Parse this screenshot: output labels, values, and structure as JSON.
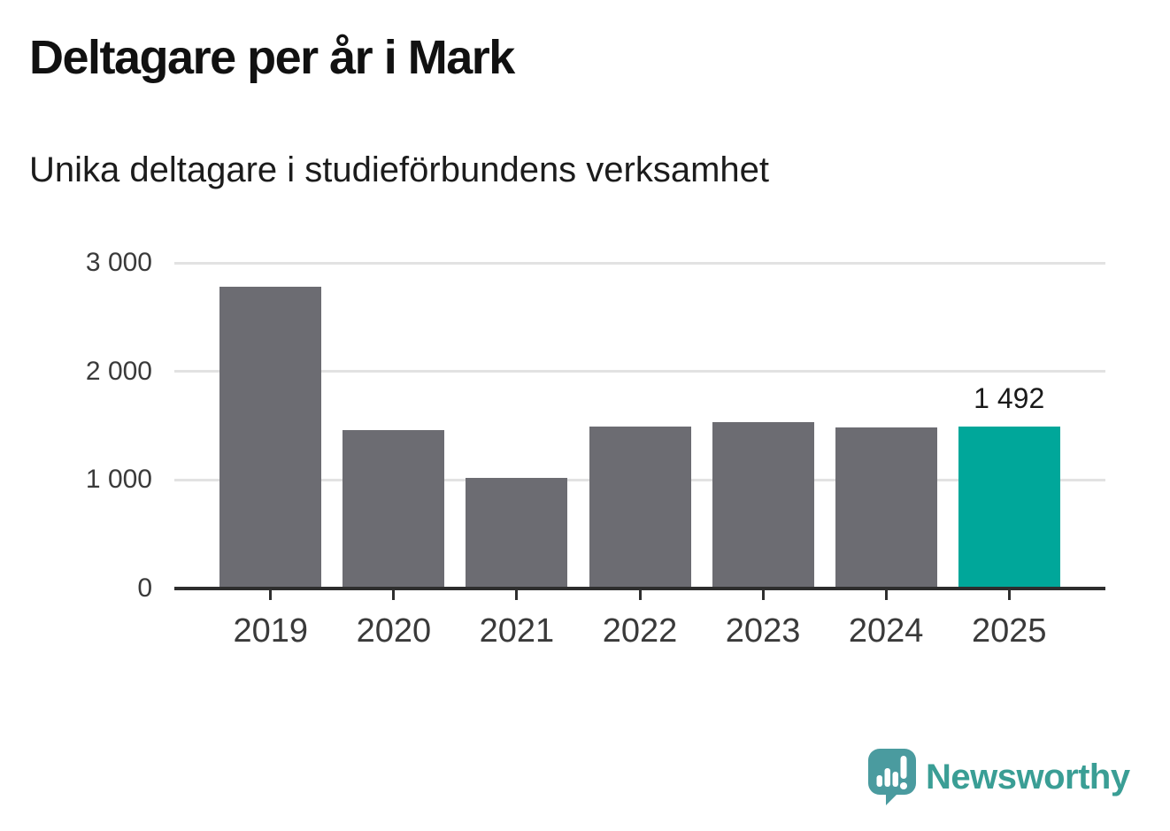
{
  "chart_data": {
    "type": "bar",
    "title": "Deltagare per år i Mark",
    "subtitle": "Unika deltagare i studieförbundens verksamhet",
    "categories": [
      "2019",
      "2020",
      "2021",
      "2022",
      "2023",
      "2024",
      "2025"
    ],
    "values": [
      2780,
      1460,
      1015,
      1495,
      1535,
      1485,
      1492
    ],
    "xlabel": "",
    "ylabel": "",
    "ylim": [
      0,
      3000
    ],
    "yticks": [
      {
        "value": 0,
        "label": "0"
      },
      {
        "value": 1000,
        "label": "1 000"
      },
      {
        "value": 2000,
        "label": "2 000"
      },
      {
        "value": 3000,
        "label": "3 000"
      }
    ],
    "grid": true,
    "legend": "none",
    "highlight_index": 6,
    "value_labels": [
      {
        "index": 6,
        "text": "1 492"
      }
    ],
    "colors": {
      "bar": "#6c6c72",
      "highlight": "#00a79a",
      "gridline": "#e2e2e2",
      "axis": "#2e2e2e"
    }
  },
  "branding": {
    "logo_text": "Newsworthy",
    "logo_icon": "newsworthy-speech-bubble-bar-chart-icon",
    "logo_color": "#3a9e95",
    "icon_color": "#4a9b9f"
  }
}
